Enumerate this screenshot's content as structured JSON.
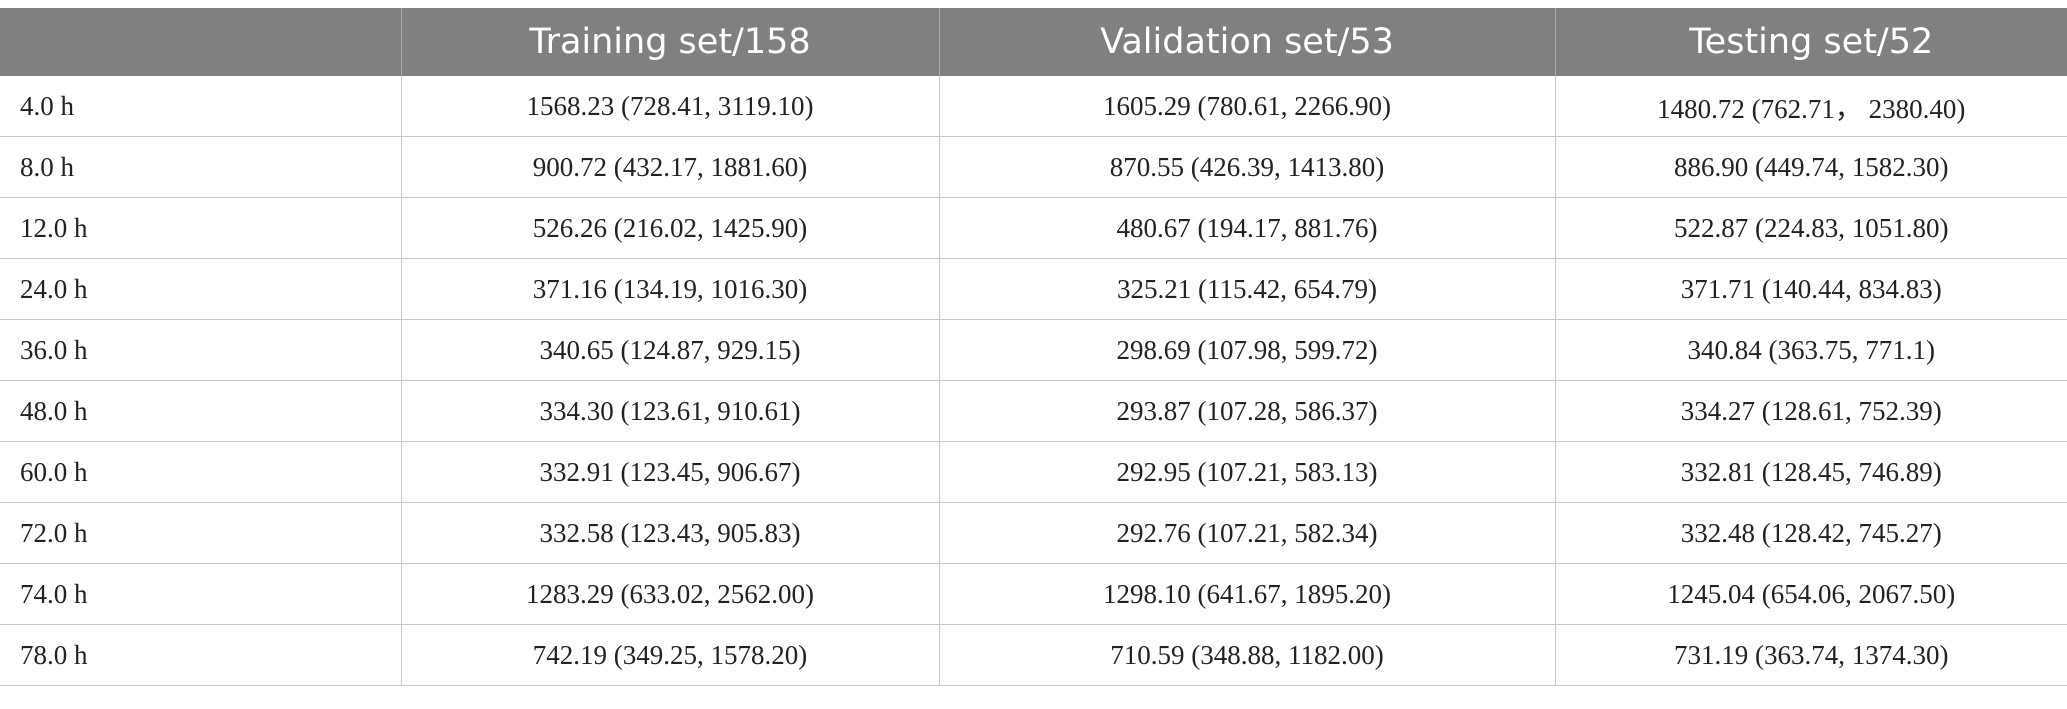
{
  "table": {
    "headers": [
      "",
      "Training set/158",
      "Validation set/53",
      "Testing set/52"
    ],
    "rows": [
      [
        "4.0 h",
        "1568.23 (728.41, 3119.10)",
        "1605.29 (780.61, 2266.90)",
        "1480.72 (762.71， 2380.40)"
      ],
      [
        "8.0 h",
        "900.72 (432.17, 1881.60)",
        "870.55 (426.39, 1413.80)",
        "886.90 (449.74, 1582.30)"
      ],
      [
        "12.0 h",
        "526.26 (216.02, 1425.90)",
        "480.67 (194.17, 881.76)",
        "522.87 (224.83, 1051.80)"
      ],
      [
        "24.0 h",
        "371.16 (134.19, 1016.30)",
        "325.21 (115.42, 654.79)",
        "371.71 (140.44, 834.83)"
      ],
      [
        "36.0 h",
        "340.65 (124.87, 929.15)",
        "298.69 (107.98, 599.72)",
        "340.84 (363.75, 771.1)"
      ],
      [
        "48.0 h",
        "334.30 (123.61, 910.61)",
        "293.87 (107.28, 586.37)",
        "334.27 (128.61, 752.39)"
      ],
      [
        "60.0 h",
        "332.91 (123.45, 906.67)",
        "292.95 (107.21, 583.13)",
        "332.81 (128.45, 746.89)"
      ],
      [
        "72.0 h",
        "332.58 (123.43, 905.83)",
        "292.76 (107.21, 582.34)",
        "332.48 (128.42, 745.27)"
      ],
      [
        "74.0 h",
        "1283.29 (633.02, 2562.00)",
        "1298.10 (641.67, 1895.20)",
        "1245.04 (654.06, 2067.50)"
      ],
      [
        "78.0 h",
        "742.19 (349.25, 1578.20)",
        "710.59 (348.88, 1182.00)",
        "731.19 (363.74, 1374.30)"
      ]
    ]
  },
  "colors": {
    "header_bg": "#7f807f",
    "header_text": "#ffffff",
    "rule": "#c9c9c9"
  }
}
